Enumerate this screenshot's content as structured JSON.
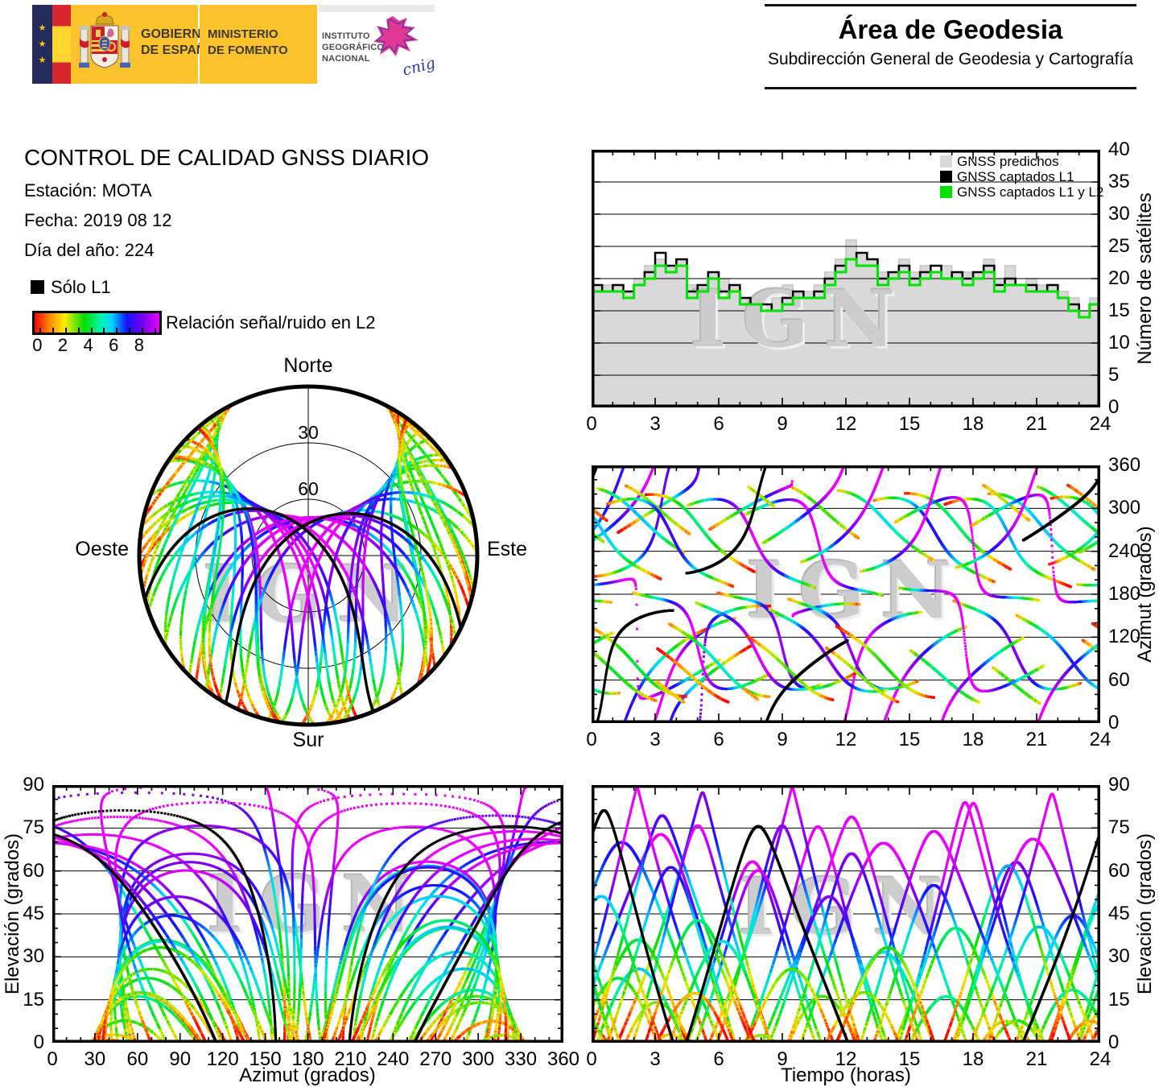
{
  "header": {
    "logos": {
      "gobierno_line1": "GOBIERNO",
      "gobierno_line2": "DE ESPAÑA",
      "ministerio_line1": "MINISTERIO",
      "ministerio_line2": "DE FOMENTO",
      "instituto_lines": [
        "INSTITUTO",
        "GEOGRÁFICO",
        "NACIONAL"
      ],
      "cnig": "cnig"
    },
    "area_title": "Área de Geodesia",
    "area_subtitle": "Subdirección General de Geodesia y Cartografía"
  },
  "report": {
    "title": "CONTROL DE CALIDAD GNSS DIARIO",
    "station": "Estación: MOTA",
    "date": "Fecha: 2019 08 12",
    "doy": "Día del año: 224"
  },
  "legend": {
    "solo_l1": "Sólo L1",
    "colorbar_label": "Relación señal/ruido en L2",
    "colorbar_min": 0,
    "colorbar_max": 9.4,
    "colorbar_ticks": [
      0,
      2,
      4,
      6,
      8
    ],
    "colorbar_stops": [
      {
        "p": 0.0,
        "c": "#ff0000"
      },
      {
        "p": 0.12,
        "c": "#ff8800"
      },
      {
        "p": 0.24,
        "c": "#ffee00"
      },
      {
        "p": 0.4,
        "c": "#00dd00"
      },
      {
        "p": 0.53,
        "c": "#00f5b4"
      },
      {
        "p": 0.62,
        "c": "#00d2ff"
      },
      {
        "p": 0.74,
        "c": "#1414ff"
      },
      {
        "p": 0.87,
        "c": "#7a00f0"
      },
      {
        "p": 1.0,
        "c": "#e800ff"
      }
    ]
  },
  "watermark": "IGN",
  "skyplot": {
    "north": "Norte",
    "south": "Sur",
    "west": "Oeste",
    "east": "Este",
    "ring_labels": [
      {
        "elevation": 30,
        "label": "30"
      },
      {
        "elevation": 60,
        "label": "60"
      }
    ]
  },
  "chart_data": {
    "sat_count": {
      "type": "area",
      "x_start": 0,
      "x_step_hours": 0.5,
      "xlim": [
        0,
        24
      ],
      "ylim": [
        0,
        40
      ],
      "xticks": [
        0,
        3,
        6,
        9,
        12,
        15,
        18,
        21,
        24
      ],
      "yticks": [
        0,
        5,
        10,
        15,
        20,
        25,
        30,
        35,
        40
      ],
      "gridlines_y": [
        5,
        10,
        15,
        20,
        25,
        30,
        35
      ],
      "xlabel": "",
      "ylabel": "Número de satélites",
      "legend": [
        {
          "label": "GNSS predichos",
          "color": "#d9d9d9"
        },
        {
          "label": "GNSS captados L1",
          "color": "#000000"
        },
        {
          "label": "GNSS captados L1 y L2",
          "color": "#00e300"
        }
      ],
      "series": [
        {
          "name": "GNSS predichos",
          "style": "step-area",
          "color": "#d9d9d9",
          "values": [
            19,
            19,
            19,
            18,
            20,
            22,
            23,
            22,
            23,
            19,
            19,
            21,
            20,
            19,
            17,
            16,
            16,
            17,
            19,
            18,
            18,
            19,
            21,
            23,
            26,
            24,
            23,
            21,
            21,
            23,
            21,
            22,
            21,
            22,
            21,
            21,
            21,
            23,
            20,
            22,
            19,
            20,
            19,
            19,
            18,
            17,
            15,
            17,
            18
          ]
        },
        {
          "name": "GNSS captados L1",
          "style": "step-line",
          "color": "#000000",
          "width": 2.5,
          "values": [
            19,
            18,
            19,
            18,
            19,
            21,
            24,
            22,
            23,
            18,
            19,
            21,
            18,
            19,
            17,
            16,
            16,
            15,
            17,
            18,
            17,
            18,
            20,
            22,
            23,
            24,
            23,
            20,
            21,
            22,
            20,
            21,
            22,
            20,
            21,
            20,
            21,
            22,
            19,
            20,
            19,
            19,
            18,
            19,
            17,
            16,
            14,
            16,
            18
          ]
        },
        {
          "name": "GNSS captados L1 y L2",
          "style": "step-line",
          "color": "#00e300",
          "width": 3,
          "values": [
            18,
            18,
            18,
            17,
            19,
            20,
            22,
            21,
            22,
            17,
            18,
            20,
            17,
            18,
            16,
            16,
            15,
            15,
            16,
            17,
            17,
            17,
            19,
            21,
            23,
            22,
            22,
            19,
            20,
            21,
            19,
            20,
            21,
            20,
            20,
            19,
            20,
            21,
            18,
            19,
            19,
            18,
            18,
            18,
            17,
            15,
            14,
            16,
            18
          ]
        }
      ]
    },
    "tracks": {
      "type": "scatter",
      "description": "GNSS satellite tracks, point color = señal/ruido L2 (0-9.4), black = sólo L1",
      "snr_range": [
        0,
        9.4
      ],
      "model": {
        "inclination_deg": 55,
        "orbit_radius_earth_radii": 4.17,
        "orbit_period_hours": 11.9659,
        "station_latitude_deg": 39.5,
        "sidereal_offset_deg": -25,
        "time_step_hours": 0.015
      },
      "satellites": [
        {
          "raan_deg": 272.8,
          "phase_deg": 11,
          "snr_bias": 1.8,
          "solo_l1": false
        },
        {
          "raan_deg": 272.8,
          "phase_deg": 41,
          "snr_bias": -0.5,
          "solo_l1": false
        },
        {
          "raan_deg": 272.8,
          "phase_deg": 161,
          "snr_bias": 0.9,
          "solo_l1": false
        },
        {
          "raan_deg": 272.8,
          "phase_deg": 268,
          "snr_bias": 2.1,
          "solo_l1": false
        },
        {
          "raan_deg": 272.8,
          "phase_deg": 330,
          "snr_bias": -1.0,
          "solo_l1": false
        },
        {
          "raan_deg": 332.8,
          "phase_deg": 80,
          "snr_bias": 1.2,
          "solo_l1": false
        },
        {
          "raan_deg": 332.8,
          "phase_deg": 173,
          "snr_bias": 2.2,
          "solo_l1": false
        },
        {
          "raan_deg": 332.8,
          "phase_deg": 204,
          "snr_bias": 0.2,
          "solo_l1": false
        },
        {
          "raan_deg": 332.8,
          "phase_deg": 319,
          "snr_bias": -0.8,
          "solo_l1": false
        },
        {
          "raan_deg": 332.8,
          "phase_deg": 346,
          "snr_bias": 1.6,
          "solo_l1": false
        },
        {
          "raan_deg": 32.8,
          "phase_deg": 11,
          "snr_bias": 0.5,
          "solo_l1": false
        },
        {
          "raan_deg": 32.8,
          "phase_deg": 111,
          "snr_bias": 2.0,
          "solo_l1": false
        },
        {
          "raan_deg": 32.8,
          "phase_deg": 188,
          "snr_bias": 0.0,
          "solo_l1": true
        },
        {
          "raan_deg": 32.8,
          "phase_deg": 255,
          "snr_bias": 1.1,
          "solo_l1": false
        },
        {
          "raan_deg": 32.8,
          "phase_deg": 339,
          "snr_bias": -0.6,
          "solo_l1": false
        },
        {
          "raan_deg": 92.8,
          "phase_deg": 35,
          "snr_bias": 1.9,
          "solo_l1": false
        },
        {
          "raan_deg": 92.8,
          "phase_deg": 135,
          "snr_bias": 0.0,
          "solo_l1": false
        },
        {
          "raan_deg": 92.8,
          "phase_deg": 167,
          "snr_bias": 2.2,
          "solo_l1": false
        },
        {
          "raan_deg": 92.8,
          "phase_deg": 220,
          "snr_bias": 0.7,
          "solo_l1": false
        },
        {
          "raan_deg": 92.8,
          "phase_deg": 265,
          "snr_bias": -1.1,
          "solo_l1": false
        },
        {
          "raan_deg": 92.8,
          "phase_deg": 310,
          "snr_bias": 1.4,
          "solo_l1": false
        },
        {
          "raan_deg": 152.8,
          "phase_deg": 35,
          "snr_bias": 0.8,
          "solo_l1": false
        },
        {
          "raan_deg": 152.8,
          "phase_deg": 66,
          "snr_bias": 2.1,
          "solo_l1": false
        },
        {
          "raan_deg": 152.8,
          "phase_deg": 123,
          "snr_bias": -0.4,
          "solo_l1": false
        },
        {
          "raan_deg": 152.8,
          "phase_deg": 197,
          "snr_bias": 1.0,
          "solo_l1": false
        },
        {
          "raan_deg": 152.8,
          "phase_deg": 302,
          "snr_bias": 1.8,
          "solo_l1": false
        },
        {
          "raan_deg": 212.8,
          "phase_deg": 24,
          "snr_bias": 0.3,
          "solo_l1": false
        },
        {
          "raan_deg": 212.8,
          "phase_deg": 105,
          "snr_bias": 0.0,
          "solo_l1": true
        },
        {
          "raan_deg": 212.8,
          "phase_deg": 170,
          "snr_bias": 1.7,
          "solo_l1": false
        },
        {
          "raan_deg": 212.8,
          "phase_deg": 238,
          "snr_bias": 2.2,
          "solo_l1": false
        },
        {
          "raan_deg": 212.8,
          "phase_deg": 345,
          "snr_bias": -0.9,
          "solo_l1": false
        }
      ]
    },
    "views": [
      {
        "id": "skyplot",
        "type": "polar-sky",
        "rings_elevation": [
          30,
          60
        ]
      },
      {
        "id": "azimut_tiempo",
        "type": "scatter",
        "x": "time",
        "y": "azimuth",
        "xlim": [
          0,
          24
        ],
        "ylim": [
          0,
          360
        ],
        "xticks": [
          0,
          3,
          6,
          9,
          12,
          15,
          18,
          21,
          24
        ],
        "yticks": [
          0,
          60,
          120,
          180,
          240,
          300,
          360
        ],
        "gridlines_y": [
          60,
          120,
          180,
          240,
          300
        ],
        "xlabel": "",
        "ylabel": "Azimut (grados)"
      },
      {
        "id": "elevacion_azimut",
        "type": "scatter",
        "x": "azimuth",
        "y": "elevation",
        "xlim": [
          0,
          360
        ],
        "ylim": [
          0,
          90
        ],
        "xticks": [
          0,
          30,
          60,
          90,
          120,
          150,
          180,
          210,
          240,
          270,
          300,
          330,
          360
        ],
        "yticks": [
          0,
          15,
          30,
          45,
          60,
          75,
          90
        ],
        "gridlines_y": [
          15,
          30,
          45,
          60,
          75
        ],
        "xlabel": "Azimut (grados)",
        "ylabel": "Elevación (grados)"
      },
      {
        "id": "elevacion_tiempo",
        "type": "scatter",
        "x": "time",
        "y": "elevation",
        "xlim": [
          0,
          24
        ],
        "ylim": [
          0,
          90
        ],
        "xticks": [
          0,
          3,
          6,
          9,
          12,
          15,
          18,
          21,
          24
        ],
        "yticks": [
          0,
          15,
          30,
          45,
          60,
          75,
          90
        ],
        "gridlines_y": [
          15,
          30,
          45,
          60,
          75
        ],
        "xlabel": "Tiempo (horas)",
        "ylabel": "Elevación (grados)"
      }
    ]
  }
}
